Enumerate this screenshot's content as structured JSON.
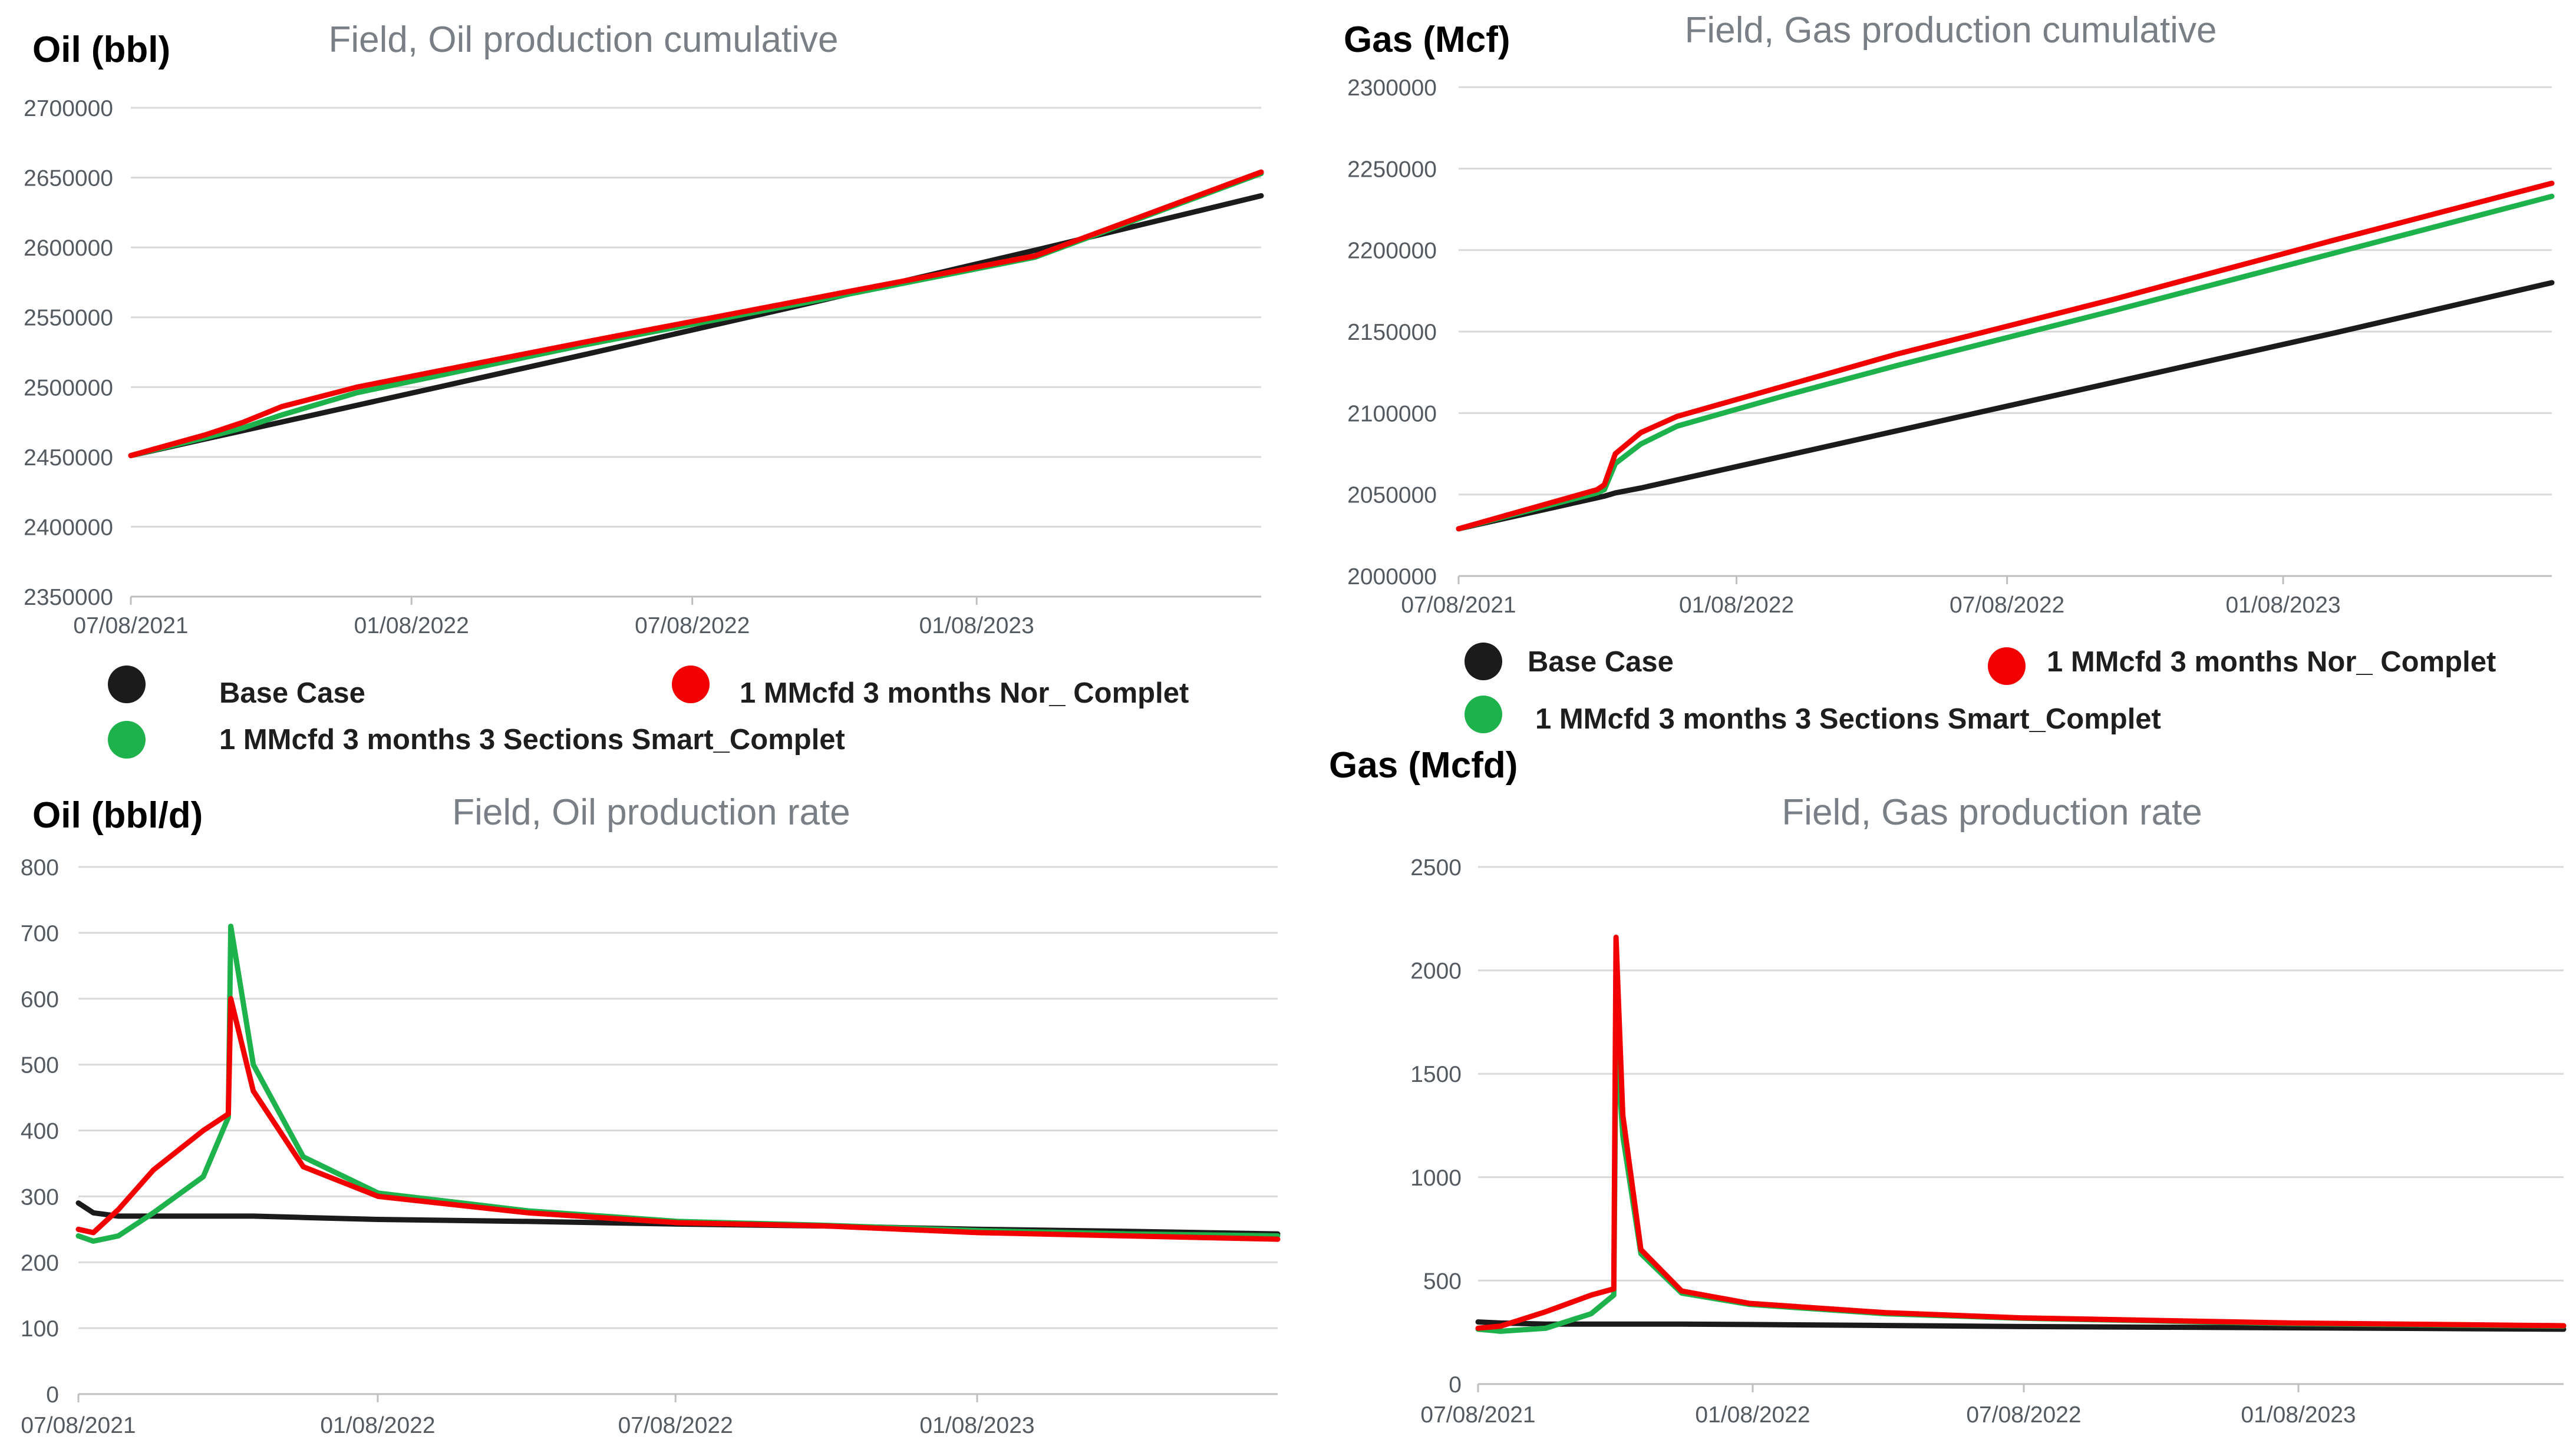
{
  "colors": {
    "base": "#1b1b1b",
    "nor": "#f20000",
    "smart": "#1db24b"
  },
  "legend": {
    "base": "Base Case",
    "nor": "1 MMcfd 3 months Nor_ Complet",
    "smart": "1 MMcfd 3 months 3 Sections Smart_Complet"
  },
  "chart_data": [
    {
      "id": "oil-cum",
      "type": "line",
      "unit_label": "Oil (bbl)",
      "title": "Field, Oil production cumulative",
      "x_ticks": [
        "07/08/2021",
        "01/08/2022",
        "07/08/2022",
        "01/08/2023"
      ],
      "x_range": [
        0,
        30
      ],
      "y_ticks": [
        2350000,
        2400000,
        2450000,
        2500000,
        2550000,
        2600000,
        2650000,
        2700000
      ],
      "ylim": [
        2350000,
        2700000
      ],
      "x": [
        0,
        2,
        3,
        4,
        6,
        9,
        12,
        18,
        24,
        30
      ],
      "series": [
        {
          "key": "base",
          "name": "Base Case",
          "values": [
            2451000,
            2463000,
            2469000,
            2475000,
            2487000,
            2505000,
            2523000,
            2560000,
            2598000,
            2637000
          ]
        },
        {
          "key": "nor",
          "name": "1 MMcfd 3 months Nor_ Complet",
          "values": [
            2451000,
            2466000,
            2475000,
            2486000,
            2500000,
            2516000,
            2532000,
            2563000,
            2594000,
            2654000
          ]
        },
        {
          "key": "smart",
          "name": "1 MMcfd 3 months 3 Sections Smart_Complet",
          "values": [
            2451000,
            2464000,
            2471000,
            2480000,
            2496000,
            2513000,
            2530000,
            2561000,
            2593000,
            2653000
          ]
        }
      ]
    },
    {
      "id": "gas-cum",
      "type": "line",
      "unit_label": "Gas (Mcf)",
      "title": "Field, Gas production cumulative",
      "x_ticks": [
        "07/08/2021",
        "01/08/2022",
        "07/08/2022",
        "01/08/2023"
      ],
      "x_range": [
        0,
        30
      ],
      "y_ticks": [
        2000000,
        2050000,
        2100000,
        2150000,
        2200000,
        2250000,
        2300000
      ],
      "ylim": [
        2000000,
        2300000
      ],
      "x": [
        0,
        3.8,
        4.0,
        4.3,
        5,
        6,
        9,
        12,
        18,
        24,
        30
      ],
      "series": [
        {
          "key": "base",
          "name": "Base Case",
          "values": [
            2029000,
            2048000,
            2049000,
            2051000,
            2054000,
            2059000,
            2074000,
            2089000,
            2119000,
            2149000,
            2180000
          ]
        },
        {
          "key": "nor",
          "name": "1 MMcfd 3 months Nor_ Complet",
          "values": [
            2029000,
            2053000,
            2056000,
            2075000,
            2088000,
            2098000,
            2117000,
            2136000,
            2170000,
            2206000,
            2241000
          ]
        },
        {
          "key": "smart",
          "name": "1 MMcfd 3 months 3 Sections Smart_Complet",
          "values": [
            2029000,
            2051000,
            2053000,
            2069000,
            2081000,
            2092000,
            2111000,
            2129000,
            2163000,
            2198000,
            2233000
          ]
        }
      ]
    },
    {
      "id": "oil-rate",
      "type": "line",
      "unit_label": "Oil (bbl/d)",
      "title": "Field, Oil production rate",
      "x_ticks": [
        "07/08/2021",
        "01/08/2022",
        "07/08/2022",
        "01/08/2023"
      ],
      "x_range": [
        0,
        24
      ],
      "y_ticks": [
        0,
        100,
        200,
        300,
        400,
        500,
        600,
        700,
        800
      ],
      "ylim": [
        0,
        800
      ],
      "x": [
        0,
        0.3,
        0.8,
        1.5,
        2.5,
        3.0,
        3.05,
        3.5,
        4.5,
        6,
        9,
        12,
        15,
        18,
        21,
        24
      ],
      "series": [
        {
          "key": "base",
          "name": "Base Case",
          "values": [
            290,
            275,
            270,
            270,
            270,
            270,
            270,
            270,
            268,
            265,
            262,
            258,
            255,
            250,
            247,
            243
          ]
        },
        {
          "key": "nor",
          "name": "1 MMcfd 3 months Nor_ Complet",
          "values": [
            250,
            245,
            280,
            340,
            400,
            425,
            600,
            460,
            345,
            300,
            275,
            260,
            255,
            245,
            240,
            235
          ]
        },
        {
          "key": "smart",
          "name": "1 MMcfd 3 months 3 Sections Smart_Complet",
          "values": [
            240,
            232,
            240,
            275,
            330,
            420,
            710,
            500,
            360,
            305,
            278,
            262,
            256,
            248,
            243,
            240
          ]
        }
      ]
    },
    {
      "id": "gas-rate",
      "type": "line",
      "unit_label": "Gas (Mcfd)",
      "title": "Field, Gas production rate",
      "x_ticks": [
        "07/08/2021",
        "01/08/2022",
        "07/08/2022",
        "01/08/2023"
      ],
      "x_range": [
        0,
        24
      ],
      "y_ticks": [
        0,
        500,
        1000,
        1500,
        2000,
        2500
      ],
      "ylim": [
        0,
        2500
      ],
      "x": [
        0,
        0.5,
        1.5,
        2.5,
        3.0,
        3.05,
        3.2,
        3.6,
        4.5,
        6,
        9,
        12,
        18,
        24
      ],
      "series": [
        {
          "key": "base",
          "name": "Base Case",
          "values": [
            300,
            295,
            290,
            290,
            290,
            290,
            290,
            290,
            290,
            288,
            283,
            278,
            272,
            265
          ]
        },
        {
          "key": "nor",
          "name": "1 MMcfd 3 months Nor_ Complet",
          "values": [
            270,
            280,
            350,
            430,
            460,
            2160,
            1300,
            650,
            450,
            390,
            345,
            320,
            295,
            282
          ]
        },
        {
          "key": "smart",
          "name": "1 MMcfd 3 months 3 Sections Smart_Complet",
          "values": [
            265,
            255,
            270,
            340,
            430,
            1700,
            1200,
            630,
            440,
            385,
            340,
            318,
            292,
            280
          ]
        }
      ]
    }
  ]
}
